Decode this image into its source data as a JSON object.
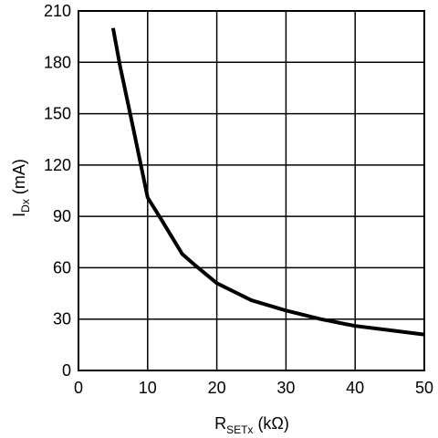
{
  "chart_data": {
    "type": "line",
    "title": "",
    "xlabel": {
      "main": "R",
      "sub": "SETx",
      "unit": " (kΩ)"
    },
    "ylabel": {
      "main": "I",
      "sub": "Dx",
      "unit": " (mA)"
    },
    "xlim": [
      0,
      50
    ],
    "ylim": [
      0,
      210
    ],
    "xticks": [
      0,
      10,
      20,
      30,
      40,
      50
    ],
    "yticks": [
      0,
      30,
      60,
      90,
      120,
      150,
      180,
      210
    ],
    "grid": true,
    "series": [
      {
        "color": "#000000",
        "x": [
          5,
          6,
          8,
          10,
          12,
          15,
          17,
          20,
          25,
          30,
          35,
          40,
          45,
          50
        ],
        "y": [
          200,
          178,
          140,
          101,
          88,
          68,
          61,
          51,
          41,
          35,
          30,
          26,
          23.5,
          21
        ]
      }
    ]
  }
}
